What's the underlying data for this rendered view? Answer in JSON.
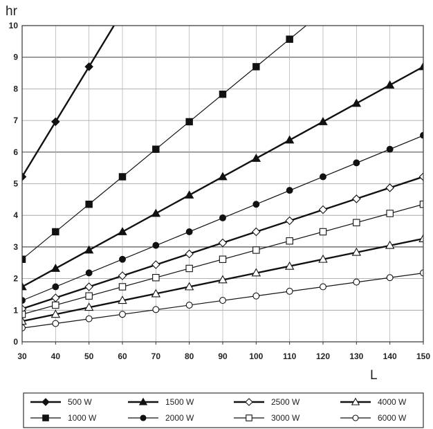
{
  "chart_data": {
    "type": "line",
    "title": "",
    "xlabel": "L",
    "ylabel": "hr",
    "xlim": [
      30,
      150
    ],
    "ylim": [
      0,
      10
    ],
    "x_ticks": [
      30,
      40,
      50,
      60,
      70,
      80,
      90,
      100,
      110,
      120,
      130,
      140,
      150
    ],
    "y_ticks": [
      0,
      1,
      2,
      3,
      4,
      5,
      6,
      7,
      8,
      9,
      10
    ],
    "grid": "horizontal",
    "legend_position": "bottom",
    "series": [
      {
        "name": "500 W",
        "marker": "diamond-filled",
        "line_width": 2.4,
        "line_slope": 0.174,
        "x": [
          30,
          40,
          50
        ],
        "y": [
          5.22,
          6.96,
          8.7
        ]
      },
      {
        "name": "1000 W",
        "marker": "square-filled",
        "line_width": 1.2,
        "line_slope": 0.087,
        "x": [
          30,
          40,
          50,
          60,
          70,
          80,
          90,
          100,
          110
        ],
        "y": [
          2.61,
          3.48,
          4.35,
          5.22,
          6.09,
          6.96,
          7.83,
          8.7,
          9.57
        ]
      },
      {
        "name": "1500 W",
        "marker": "triangle-filled",
        "line_width": 2.4,
        "line_slope": 0.058,
        "x": [
          30,
          40,
          50,
          60,
          70,
          80,
          90,
          100,
          110,
          120,
          130,
          140,
          150
        ],
        "y": [
          1.74,
          2.32,
          2.9,
          3.48,
          4.06,
          4.64,
          5.22,
          5.8,
          6.38,
          6.96,
          7.54,
          8.12,
          8.7
        ]
      },
      {
        "name": "2000 W",
        "marker": "circle-filled",
        "line_width": 1.2,
        "line_slope": 0.0435,
        "x": [
          30,
          40,
          50,
          60,
          70,
          80,
          90,
          100,
          110,
          120,
          130,
          140,
          150
        ],
        "y": [
          1.31,
          1.74,
          2.18,
          2.61,
          3.05,
          3.48,
          3.92,
          4.35,
          4.79,
          5.22,
          5.66,
          6.09,
          6.53
        ]
      },
      {
        "name": "2500 W",
        "marker": "diamond-open",
        "line_width": 2.4,
        "line_slope": 0.0348,
        "x": [
          30,
          40,
          50,
          60,
          70,
          80,
          90,
          100,
          110,
          120,
          130,
          140,
          150
        ],
        "y": [
          1.04,
          1.39,
          1.74,
          2.09,
          2.44,
          2.78,
          3.13,
          3.48,
          3.83,
          4.18,
          4.52,
          4.87,
          5.22
        ]
      },
      {
        "name": "3000 W",
        "marker": "square-open",
        "line_width": 1.2,
        "line_slope": 0.029,
        "x": [
          30,
          40,
          50,
          60,
          70,
          80,
          90,
          100,
          110,
          120,
          130,
          140,
          150
        ],
        "y": [
          0.87,
          1.16,
          1.45,
          1.74,
          2.03,
          2.32,
          2.61,
          2.9,
          3.19,
          3.48,
          3.77,
          4.06,
          4.35
        ]
      },
      {
        "name": "4000 W",
        "marker": "triangle-open",
        "line_width": 2.4,
        "line_slope": 0.02175,
        "x": [
          30,
          40,
          50,
          60,
          70,
          80,
          90,
          100,
          110,
          120,
          130,
          140,
          150
        ],
        "y": [
          0.65,
          0.87,
          1.09,
          1.31,
          1.52,
          1.74,
          1.96,
          2.18,
          2.39,
          2.61,
          2.83,
          3.05,
          3.26
        ]
      },
      {
        "name": "6000 W",
        "marker": "circle-open",
        "line_width": 1.2,
        "line_slope": 0.0145,
        "x": [
          30,
          40,
          50,
          60,
          70,
          80,
          90,
          100,
          110,
          120,
          130,
          140,
          150
        ],
        "y": [
          0.44,
          0.58,
          0.73,
          0.87,
          1.02,
          1.16,
          1.31,
          1.45,
          1.6,
          1.74,
          1.89,
          2.03,
          2.18
        ]
      }
    ],
    "legend_order": [
      "500 W",
      "1500 W",
      "2500 W",
      "4000 W",
      "1000 W",
      "2000 W",
      "3000 W",
      "6000 W"
    ]
  }
}
